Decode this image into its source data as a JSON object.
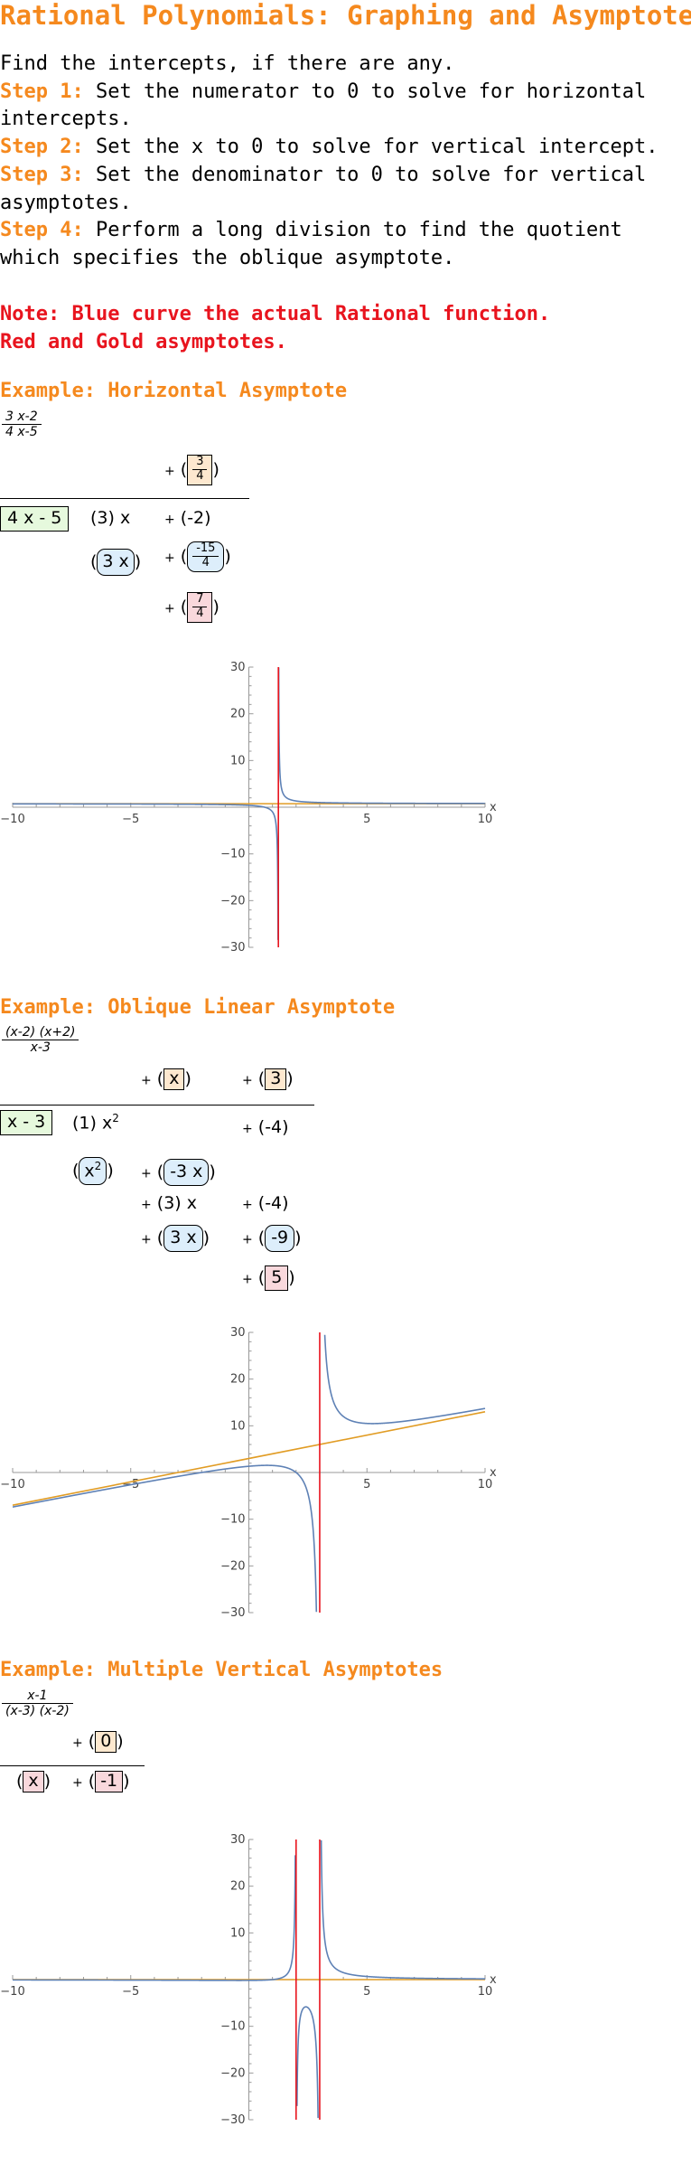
{
  "title": "Rational Polynomials: Graphing and Asymptotes",
  "intro": {
    "line0": "Find the intercepts, if there are any.",
    "steps": [
      {
        "label": "Step 1:",
        "text": " Set the numerator to 0 to solve for horizontal intercepts."
      },
      {
        "label": "Step 2:",
        "text": " Set the x to 0 to solve for vertical intercept."
      },
      {
        "label": "Step 3:",
        "text": " Set the denominator to 0 to solve for vertical asymptotes."
      },
      {
        "label": "Step 4:",
        "text": " Perform a long division to find the quotient which specifies the oblique asymptote."
      }
    ]
  },
  "note": {
    "line1": "Note: Blue curve the actual Rational function.",
    "line2": "Red and Gold asymptotes."
  },
  "colors": {
    "heading": "#F5891E",
    "note": "#E8141E",
    "curve": "#5E81B5",
    "vertical_asymptote": "#E8141E",
    "other_asymptote": "#E19C24"
  },
  "examples": [
    {
      "heading": "Example: Horizontal Asymptote",
      "fn_num": "3 x-2",
      "fn_den": "4 x-5",
      "division": {
        "quotient": {
          "num": "3",
          "den": "4"
        },
        "divisor": "4 x - 5",
        "dividend": {
          "coef": "3",
          "var": "x",
          "const": "-2"
        },
        "product": {
          "term": "3 x",
          "num": "-15",
          "den": "4"
        },
        "remainder": {
          "num": "7",
          "den": "4"
        }
      },
      "chart_data": {
        "type": "line",
        "x_range": [
          -10,
          10
        ],
        "y_range": [
          -30,
          30
        ],
        "xlabel": "x",
        "x_ticks": [
          -10,
          -5,
          5,
          10
        ],
        "y_ticks": [
          -30,
          -20,
          -10,
          10,
          20,
          30
        ],
        "series": [
          {
            "kind": "function",
            "expression": "(3x-2)/(4x-5)",
            "role": "curve"
          },
          {
            "kind": "horizontal",
            "y": 0.75,
            "role": "other_asymptote"
          },
          {
            "kind": "vertical",
            "x": 1.25,
            "role": "vertical_asymptote"
          }
        ]
      }
    },
    {
      "heading": "Example: Oblique Linear Asymptote",
      "fn_num": "(x-2) (x+2)",
      "fn_den": "x-3",
      "division": {
        "quotient_terms": [
          "x",
          "3"
        ],
        "divisor": "x - 3",
        "row1": {
          "coef": "1",
          "var": "x",
          "exp": "2",
          "const": "-4"
        },
        "row2": {
          "left_var": "x",
          "left_exp": "2",
          "right": "-3 x"
        },
        "row3": {
          "coef": "3",
          "var": "x",
          "const": "-4"
        },
        "row4": {
          "term": "3 x",
          "const": "-9"
        },
        "remainder": "5"
      },
      "chart_data": {
        "type": "line",
        "x_range": [
          -10,
          10
        ],
        "y_range": [
          -30,
          30
        ],
        "xlabel": "x",
        "x_ticks": [
          -10,
          -5,
          5,
          10
        ],
        "y_ticks": [
          -30,
          -20,
          -10,
          10,
          20,
          30
        ],
        "series": [
          {
            "kind": "function",
            "expression": "(x-2)(x+2)/(x-3)",
            "role": "curve"
          },
          {
            "kind": "line",
            "slope": 1,
            "intercept": 3,
            "role": "other_asymptote"
          },
          {
            "kind": "vertical",
            "x": 3,
            "role": "vertical_asymptote"
          }
        ]
      }
    },
    {
      "heading": "Example: Multiple Vertical Asymptotes",
      "fn_num": "x-1",
      "fn_den": "(x-3) (x-2)",
      "division": {
        "quotient": "0",
        "left": "x",
        "remainder": "-1"
      },
      "chart_data": {
        "type": "line",
        "x_range": [
          -10,
          10
        ],
        "y_range": [
          -30,
          30
        ],
        "xlabel": "x",
        "x_ticks": [
          -10,
          -5,
          5,
          10
        ],
        "y_ticks": [
          -30,
          -20,
          -10,
          10,
          20,
          30
        ],
        "series": [
          {
            "kind": "function",
            "expression": "(x-1)/((x-3)(x-2))",
            "role": "curve"
          },
          {
            "kind": "horizontal",
            "y": 0,
            "role": "other_asymptote"
          },
          {
            "kind": "vertical",
            "x": 2,
            "role": "vertical_asymptote"
          },
          {
            "kind": "vertical",
            "x": 3,
            "role": "vertical_asymptote"
          }
        ]
      }
    }
  ]
}
